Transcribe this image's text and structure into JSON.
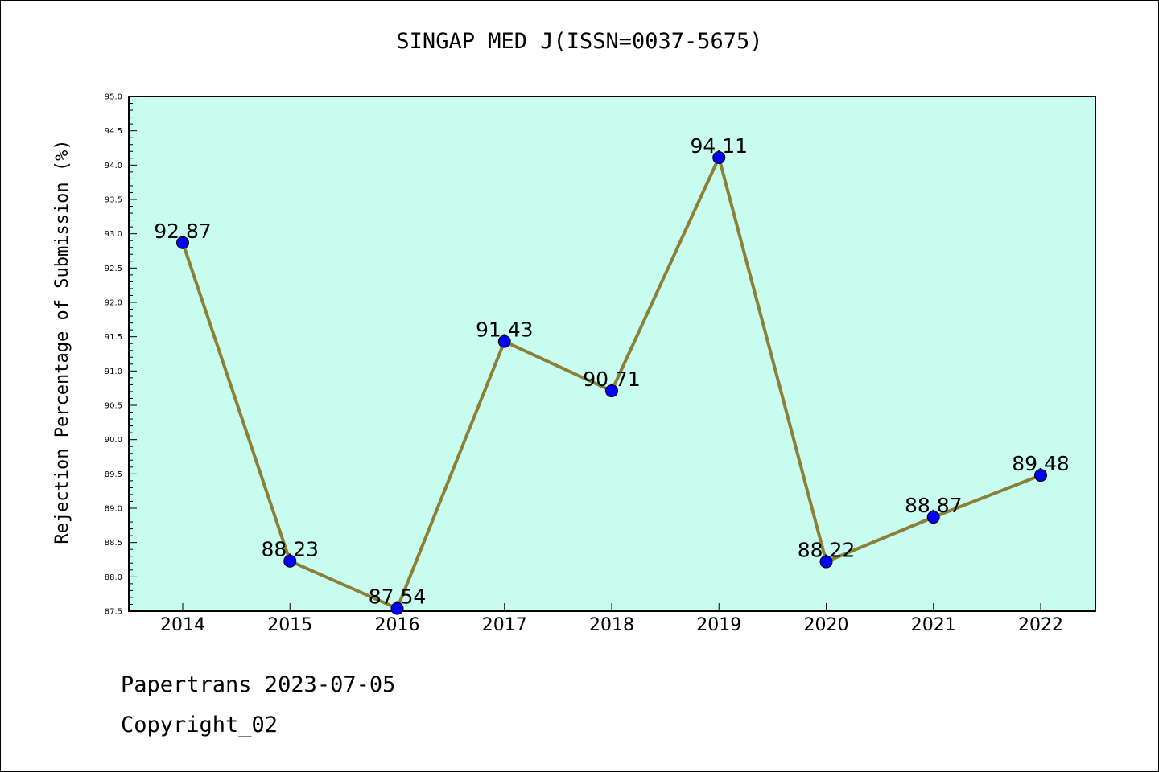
{
  "chart_data": {
    "type": "line",
    "title": "SINGAP MED J(ISSN=0037-5675)",
    "xlabel": "",
    "ylabel": "Rejection Percentage of Submission (%)",
    "categories": [
      "2014",
      "2015",
      "2016",
      "2017",
      "2018",
      "2019",
      "2020",
      "2021",
      "2022"
    ],
    "values": [
      92.87,
      88.23,
      87.54,
      91.43,
      90.71,
      94.11,
      88.22,
      88.87,
      89.48
    ],
    "data_labels": [
      "92.87",
      "88.23",
      "87.54",
      "91.43",
      "90.71",
      "94.11",
      "88.22",
      "88.87",
      "89.48"
    ],
    "ylim": [
      87.5,
      95.0
    ],
    "y_ticks": [
      "87.5",
      "88.0",
      "88.5",
      "89.0",
      "89.5",
      "90.0",
      "90.5",
      "91.0",
      "91.5",
      "92.0",
      "92.5",
      "93.0",
      "93.5",
      "94.0",
      "94.5",
      "95.0"
    ],
    "grid": false,
    "colors": {
      "plot_background": "#c8fcee",
      "line": "#8c8038",
      "marker": "#0000ff"
    }
  },
  "footer": {
    "source": "Papertrans 2023-07-05",
    "copyright": "Copyright_02"
  }
}
